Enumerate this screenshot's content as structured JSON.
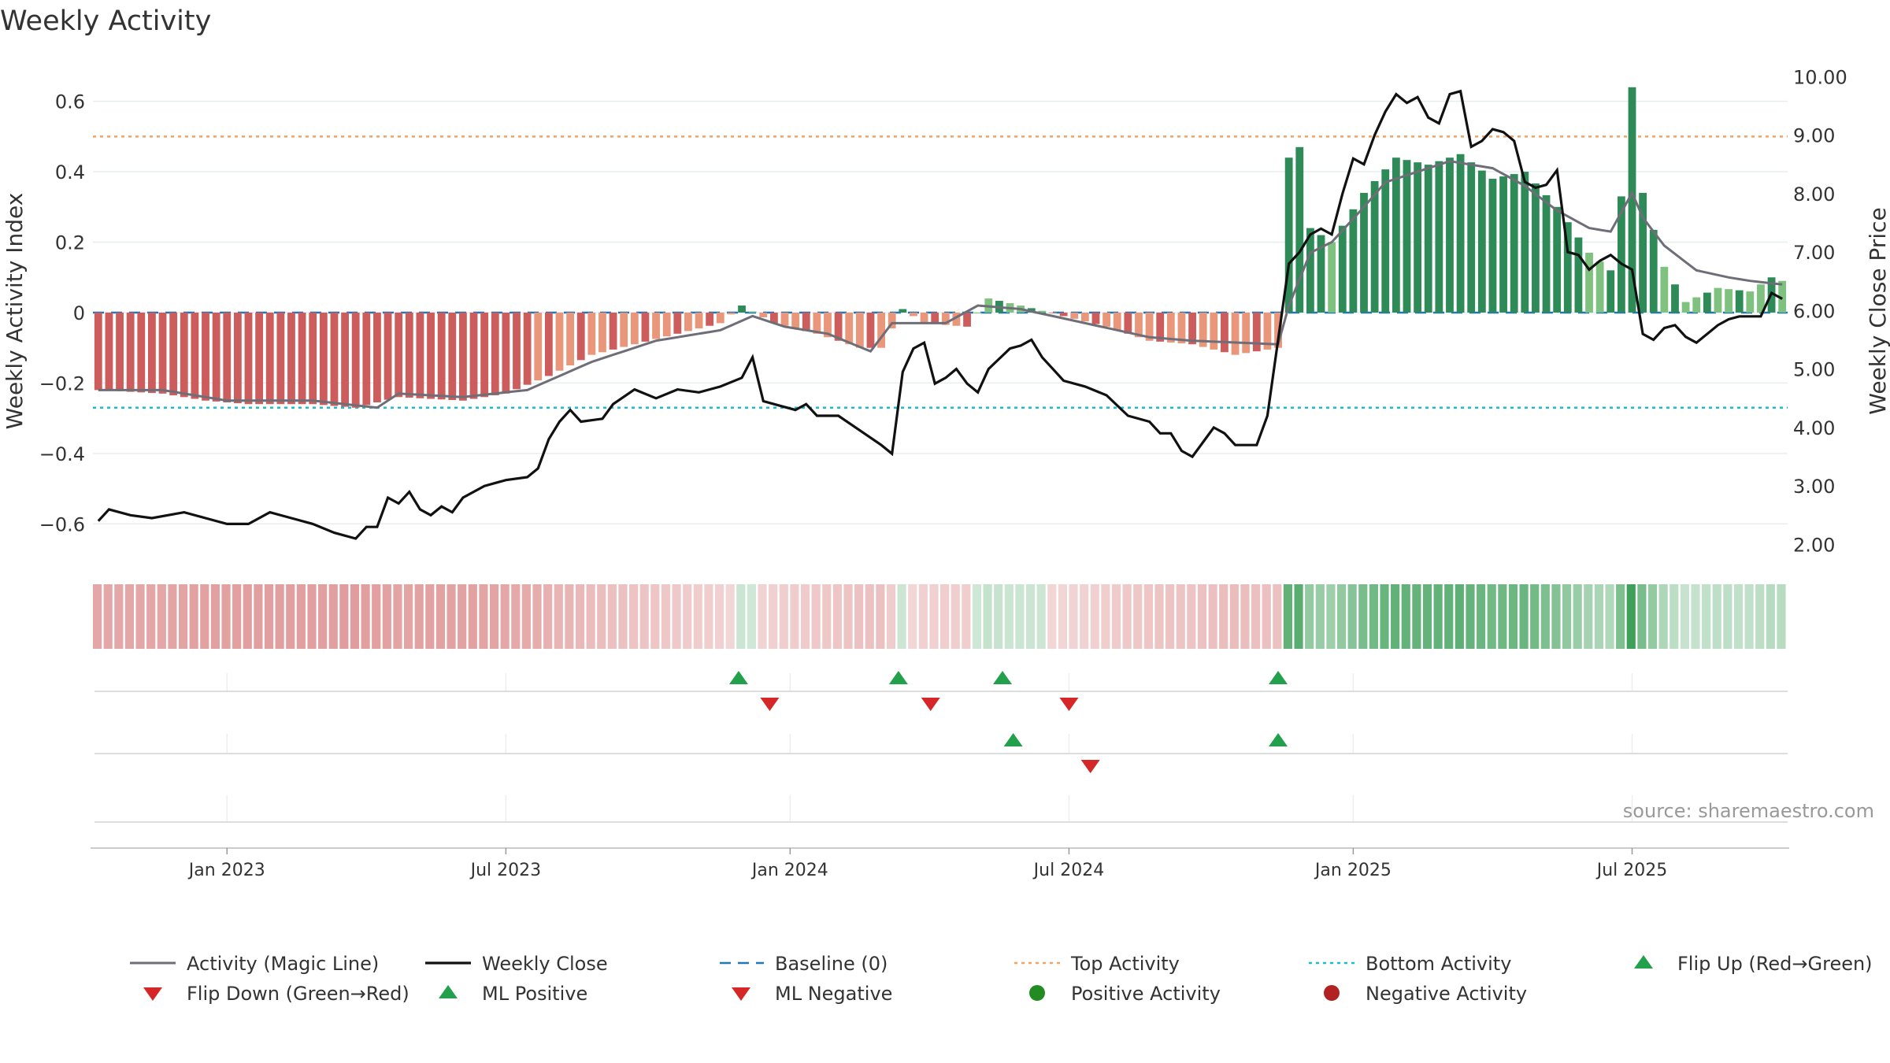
{
  "chart_data": {
    "type": "bar",
    "title": "Weekly Activity",
    "ylabel": "Weekly Activity Index",
    "y2label": "Weekly Close Price",
    "ylim": [
      -0.7,
      0.72
    ],
    "y2lim": [
      1.75,
      10.3
    ],
    "y_ticks": [
      0.6,
      0.4,
      0.2,
      0,
      -0.2,
      -0.4,
      -0.6
    ],
    "y_tick_labels": [
      "0.6",
      "0.4",
      "0.2",
      "0",
      "−0.2",
      "−0.4",
      "−0.6"
    ],
    "y2_ticks": [
      10,
      9,
      8,
      7,
      6,
      5,
      4,
      3,
      2
    ],
    "y2_tick_labels": [
      "10.00",
      "9.00",
      "8.00",
      "7.00",
      "6.00",
      "5.00",
      "4.00",
      "3.00",
      "2.00"
    ],
    "x_tick_labels": [
      "Jan 2023",
      "Jul 2023",
      "Jan 2024",
      "Jul 2024",
      "Jan 2025",
      "Jul 2025"
    ],
    "x_tick_weeks": [
      12,
      38,
      64.5,
      90.5,
      117,
      143
    ],
    "week_count": 158,
    "top_activity": 0.5,
    "bottom_activity": -0.27,
    "source": "source: sharemaestro.com",
    "colors": {
      "pos_dark": "#2e8b57",
      "pos_light": "#7fc27f",
      "neg_dark": "#cd5c5c",
      "neg_light": "#e9967a",
      "magic": "#6e6e78",
      "close": "#111111",
      "top": "#f4a261",
      "bottom": "#17becf",
      "baseline": "#1f77b4",
      "up": "#22a04b",
      "down": "#d62728"
    },
    "activity_anchors": [
      [
        0,
        -0.22
      ],
      [
        6,
        -0.23
      ],
      [
        10,
        -0.25
      ],
      [
        14,
        -0.26
      ],
      [
        20,
        -0.26
      ],
      [
        24,
        -0.27
      ],
      [
        28,
        -0.24
      ],
      [
        34,
        -0.25
      ],
      [
        38,
        -0.23
      ],
      [
        42,
        -0.18
      ],
      [
        46,
        -0.12
      ],
      [
        50,
        -0.09
      ],
      [
        54,
        -0.06
      ],
      [
        58,
        -0.03
      ],
      [
        60,
        0.02
      ],
      [
        63,
        -0.03
      ],
      [
        67,
        -0.06
      ],
      [
        71,
        -0.1
      ],
      [
        73,
        -0.1
      ],
      [
        75,
        0.01
      ],
      [
        77,
        -0.03
      ],
      [
        81,
        -0.04
      ],
      [
        83,
        0.04
      ],
      [
        86,
        0.02
      ],
      [
        90,
        -0.01
      ],
      [
        94,
        -0.04
      ],
      [
        98,
        -0.08
      ],
      [
        102,
        -0.09
      ],
      [
        106,
        -0.12
      ],
      [
        110,
        -0.1
      ],
      [
        111,
        0.44
      ],
      [
        112,
        0.47
      ],
      [
        113,
        0.24
      ],
      [
        115,
        0.2
      ],
      [
        118,
        0.34
      ],
      [
        121,
        0.44
      ],
      [
        124,
        0.42
      ],
      [
        127,
        0.45
      ],
      [
        130,
        0.38
      ],
      [
        133,
        0.4
      ],
      [
        136,
        0.3
      ],
      [
        139,
        0.17
      ],
      [
        141,
        0.12
      ],
      [
        142,
        0.33
      ],
      [
        143,
        0.64
      ],
      [
        144,
        0.34
      ],
      [
        146,
        0.13
      ],
      [
        148,
        0.03
      ],
      [
        151,
        0.07
      ],
      [
        154,
        0.06
      ],
      [
        156,
        0.1
      ],
      [
        157,
        0.09
      ]
    ],
    "magic_anchors": [
      [
        0,
        -0.22
      ],
      [
        6,
        -0.22
      ],
      [
        12,
        -0.25
      ],
      [
        20,
        -0.25
      ],
      [
        26,
        -0.27
      ],
      [
        28,
        -0.23
      ],
      [
        34,
        -0.24
      ],
      [
        40,
        -0.22
      ],
      [
        46,
        -0.14
      ],
      [
        52,
        -0.08
      ],
      [
        58,
        -0.05
      ],
      [
        61,
        -0.01
      ],
      [
        64,
        -0.04
      ],
      [
        68,
        -0.06
      ],
      [
        72,
        -0.11
      ],
      [
        74,
        -0.03
      ],
      [
        79,
        -0.03
      ],
      [
        82,
        0.02
      ],
      [
        86,
        0.01
      ],
      [
        92,
        -0.03
      ],
      [
        98,
        -0.07
      ],
      [
        102,
        -0.08
      ],
      [
        110,
        -0.09
      ],
      [
        111,
        0.02
      ],
      [
        113,
        0.17
      ],
      [
        115,
        0.2
      ],
      [
        118,
        0.3
      ],
      [
        120,
        0.37
      ],
      [
        124,
        0.41
      ],
      [
        126,
        0.43
      ],
      [
        130,
        0.41
      ],
      [
        133,
        0.36
      ],
      [
        136,
        0.29
      ],
      [
        139,
        0.24
      ],
      [
        141,
        0.23
      ],
      [
        143,
        0.34
      ],
      [
        144,
        0.27
      ],
      [
        146,
        0.19
      ],
      [
        149,
        0.12
      ],
      [
        152,
        0.1
      ],
      [
        154,
        0.09
      ],
      [
        157,
        0.08
      ]
    ],
    "close_anchors": [
      [
        0,
        2.4
      ],
      [
        1,
        2.6
      ],
      [
        3,
        2.5
      ],
      [
        5,
        2.45
      ],
      [
        8,
        2.55
      ],
      [
        10,
        2.45
      ],
      [
        12,
        2.35
      ],
      [
        14,
        2.35
      ],
      [
        16,
        2.55
      ],
      [
        18,
        2.45
      ],
      [
        20,
        2.35
      ],
      [
        22,
        2.2
      ],
      [
        24,
        2.1
      ],
      [
        25,
        2.3
      ],
      [
        26,
        2.3
      ],
      [
        27,
        2.8
      ],
      [
        28,
        2.7
      ],
      [
        29,
        2.9
      ],
      [
        30,
        2.6
      ],
      [
        31,
        2.5
      ],
      [
        32,
        2.65
      ],
      [
        33,
        2.55
      ],
      [
        34,
        2.8
      ],
      [
        36,
        3.0
      ],
      [
        38,
        3.1
      ],
      [
        40,
        3.15
      ],
      [
        41,
        3.3
      ],
      [
        42,
        3.8
      ],
      [
        43,
        4.1
      ],
      [
        44,
        4.3
      ],
      [
        45,
        4.1
      ],
      [
        47,
        4.15
      ],
      [
        48,
        4.4
      ],
      [
        50,
        4.65
      ],
      [
        52,
        4.5
      ],
      [
        54,
        4.65
      ],
      [
        56,
        4.6
      ],
      [
        58,
        4.7
      ],
      [
        60,
        4.85
      ],
      [
        61,
        5.2
      ],
      [
        62,
        4.45
      ],
      [
        64,
        4.35
      ],
      [
        65,
        4.3
      ],
      [
        66,
        4.4
      ],
      [
        67,
        4.2
      ],
      [
        69,
        4.2
      ],
      [
        71,
        3.95
      ],
      [
        73,
        3.7
      ],
      [
        74,
        3.55
      ],
      [
        75,
        4.95
      ],
      [
        76,
        5.35
      ],
      [
        77,
        5.45
      ],
      [
        78,
        4.75
      ],
      [
        79,
        4.85
      ],
      [
        80,
        5.0
      ],
      [
        81,
        4.75
      ],
      [
        82,
        4.6
      ],
      [
        83,
        5.0
      ],
      [
        85,
        5.35
      ],
      [
        86,
        5.4
      ],
      [
        87,
        5.5
      ],
      [
        88,
        5.2
      ],
      [
        89,
        5.0
      ],
      [
        90,
        4.8
      ],
      [
        92,
        4.7
      ],
      [
        94,
        4.55
      ],
      [
        96,
        4.2
      ],
      [
        98,
        4.1
      ],
      [
        99,
        3.9
      ],
      [
        100,
        3.9
      ],
      [
        101,
        3.6
      ],
      [
        102,
        3.5
      ],
      [
        103,
        3.75
      ],
      [
        104,
        4.0
      ],
      [
        105,
        3.9
      ],
      [
        106,
        3.7
      ],
      [
        108,
        3.7
      ],
      [
        109,
        4.2
      ],
      [
        110,
        5.5
      ],
      [
        111,
        6.8
      ],
      [
        112,
        7.0
      ],
      [
        113,
        7.3
      ],
      [
        114,
        7.4
      ],
      [
        115,
        7.3
      ],
      [
        116,
        8.0
      ],
      [
        117,
        8.6
      ],
      [
        118,
        8.5
      ],
      [
        119,
        9.0
      ],
      [
        120,
        9.4
      ],
      [
        121,
        9.7
      ],
      [
        122,
        9.55
      ],
      [
        123,
        9.65
      ],
      [
        124,
        9.3
      ],
      [
        125,
        9.2
      ],
      [
        126,
        9.7
      ],
      [
        127,
        9.75
      ],
      [
        128,
        8.8
      ],
      [
        129,
        8.9
      ],
      [
        130,
        9.1
      ],
      [
        131,
        9.05
      ],
      [
        132,
        8.9
      ],
      [
        133,
        8.2
      ],
      [
        134,
        8.1
      ],
      [
        135,
        8.15
      ],
      [
        136,
        8.4
      ],
      [
        137,
        7.0
      ],
      [
        138,
        6.95
      ],
      [
        139,
        6.7
      ],
      [
        140,
        6.85
      ],
      [
        141,
        6.95
      ],
      [
        142,
        6.8
      ],
      [
        143,
        6.7
      ],
      [
        144,
        5.6
      ],
      [
        145,
        5.5
      ],
      [
        146,
        5.7
      ],
      [
        147,
        5.75
      ],
      [
        148,
        5.55
      ],
      [
        149,
        5.45
      ],
      [
        150,
        5.6
      ],
      [
        151,
        5.75
      ],
      [
        152,
        5.85
      ],
      [
        153,
        5.9
      ],
      [
        155,
        5.9
      ],
      [
        156,
        6.3
      ],
      [
        157,
        6.2
      ]
    ],
    "flip_up_weeks": [
      59.7,
      74.6,
      84.3,
      110
    ],
    "flip_down_weeks": [
      62.6,
      77.6,
      90.5
    ],
    "ml_positive_weeks": [
      85.3,
      110
    ],
    "ml_negative_weeks": [
      92.5
    ],
    "legend": [
      {
        "label": "Activity (Magic Line)",
        "kind": "line"
      },
      {
        "label": "Weekly Close",
        "kind": "close"
      },
      {
        "label": "Baseline (0)",
        "kind": "baseline"
      },
      {
        "label": "Top Activity",
        "kind": "top"
      },
      {
        "label": "Bottom Activity",
        "kind": "bottom"
      },
      {
        "label": "Flip Up (Red→Green)",
        "kind": "tri-up"
      },
      {
        "label": "Flip Down (Green→Red)",
        "kind": "tri-down"
      },
      {
        "label": "ML Positive",
        "kind": "tri-up"
      },
      {
        "label": "ML Negative",
        "kind": "tri-down"
      },
      {
        "label": "Positive Activity",
        "kind": "dot-pos"
      },
      {
        "label": "Negative Activity",
        "kind": "dot-neg"
      }
    ]
  }
}
